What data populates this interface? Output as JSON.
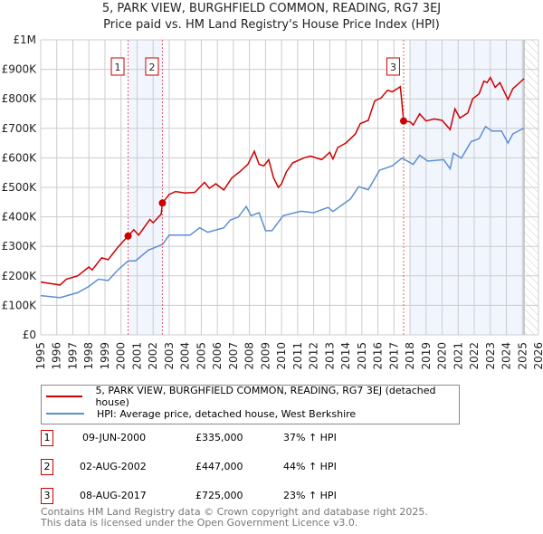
{
  "header": {
    "title": "5, PARK VIEW, BURGHFIELD COMMON, READING, RG7 3EJ",
    "subtitle": "Price paid vs. HM Land Registry's House Price Index (HPI)"
  },
  "chart_data": {
    "type": "line",
    "title": "5, PARK VIEW, BURGHFIELD COMMON, READING, RG7 3EJ",
    "subtitle": "Price paid vs. HM Land Registry's House Price Index (HPI)",
    "xlim": [
      1995,
      2026
    ],
    "ylim": [
      0,
      1000000
    ],
    "yticks": [
      {
        "v": 0,
        "label": "£0"
      },
      {
        "v": 100000,
        "label": "£100K"
      },
      {
        "v": 200000,
        "label": "£200K"
      },
      {
        "v": 300000,
        "label": "£300K"
      },
      {
        "v": 400000,
        "label": "£400K"
      },
      {
        "v": 500000,
        "label": "£500K"
      },
      {
        "v": 600000,
        "label": "£600K"
      },
      {
        "v": 700000,
        "label": "£700K"
      },
      {
        "v": 800000,
        "label": "£800K"
      },
      {
        "v": 900000,
        "label": "£900K"
      },
      {
        "v": 1000000,
        "label": "£1M"
      }
    ],
    "xticks": [
      "1995",
      "1996",
      "1997",
      "1998",
      "1999",
      "2000",
      "2001",
      "2002",
      "2003",
      "2004",
      "2005",
      "2006",
      "2007",
      "2008",
      "2009",
      "2010",
      "2011",
      "2012",
      "2013",
      "2014",
      "2015",
      "2016",
      "2017",
      "2018",
      "2019",
      "2020",
      "2021",
      "2022",
      "2023",
      "2024",
      "2025",
      "2026"
    ],
    "grid": true,
    "series": [
      {
        "name": "5, PARK VIEW, BURGHFIELD COMMON, READING, RG7 3EJ (detached house)",
        "color": "#cc0000",
        "points": [
          [
            1995,
            179000
          ],
          [
            1996.2,
            169000
          ],
          [
            1996.6,
            189000
          ],
          [
            1997.3,
            200000
          ],
          [
            1998,
            230000
          ],
          [
            1998.2,
            220000
          ],
          [
            1998.8,
            261000
          ],
          [
            1999.2,
            255000
          ],
          [
            1999.8,
            297000
          ],
          [
            2000.44,
            335000
          ],
          [
            2000.8,
            356000
          ],
          [
            2001.1,
            338000
          ],
          [
            2001.8,
            391000
          ],
          [
            2002,
            380000
          ],
          [
            2002.5,
            409000
          ],
          [
            2002.58,
            447000
          ],
          [
            2003,
            476000
          ],
          [
            2003.4,
            486000
          ],
          [
            2004,
            481000
          ],
          [
            2004.6,
            483000
          ],
          [
            2005.2,
            517000
          ],
          [
            2005.5,
            497000
          ],
          [
            2005.9,
            512000
          ],
          [
            2006.4,
            491000
          ],
          [
            2006.9,
            532000
          ],
          [
            2007.4,
            553000
          ],
          [
            2007.9,
            578000
          ],
          [
            2008.3,
            622000
          ],
          [
            2008.6,
            578000
          ],
          [
            2008.9,
            573000
          ],
          [
            2009.2,
            594000
          ],
          [
            2009.5,
            532000
          ],
          [
            2009.8,
            500000
          ],
          [
            2010,
            512000
          ],
          [
            2010.3,
            553000
          ],
          [
            2010.7,
            583000
          ],
          [
            2011.4,
            600000
          ],
          [
            2011.8,
            606000
          ],
          [
            2012.5,
            594000
          ],
          [
            2013,
            619000
          ],
          [
            2013.2,
            596000
          ],
          [
            2013.5,
            635000
          ],
          [
            2014,
            650000
          ],
          [
            2014.6,
            681000
          ],
          [
            2014.9,
            716000
          ],
          [
            2015.4,
            727000
          ],
          [
            2015.8,
            793000
          ],
          [
            2016.2,
            803000
          ],
          [
            2016.6,
            829000
          ],
          [
            2016.9,
            824000
          ],
          [
            2017.4,
            841000
          ],
          [
            2017.6,
            725000
          ],
          [
            2018,
            722000
          ],
          [
            2018.2,
            711000
          ],
          [
            2018.6,
            749000
          ],
          [
            2019,
            725000
          ],
          [
            2019.5,
            732000
          ],
          [
            2020,
            727000
          ],
          [
            2020.5,
            696000
          ],
          [
            2020.8,
            766000
          ],
          [
            2021.1,
            735000
          ],
          [
            2021.6,
            752000
          ],
          [
            2021.9,
            800000
          ],
          [
            2022.3,
            817000
          ],
          [
            2022.6,
            860000
          ],
          [
            2022.8,
            855000
          ],
          [
            2023,
            872000
          ],
          [
            2023.3,
            839000
          ],
          [
            2023.6,
            855000
          ],
          [
            2024.1,
            798000
          ],
          [
            2024.4,
            834000
          ],
          [
            2025.1,
            868000
          ]
        ]
      },
      {
        "name": "HPI: Average price, detached house, West Berkshire",
        "color": "#5b8fd4",
        "points": [
          [
            1995,
            133000
          ],
          [
            1996.2,
            126000
          ],
          [
            1997.3,
            143000
          ],
          [
            1998,
            164000
          ],
          [
            1998.6,
            189000
          ],
          [
            1999.2,
            184000
          ],
          [
            1999.8,
            220000
          ],
          [
            2000.45,
            251000
          ],
          [
            2000.9,
            251000
          ],
          [
            2001.7,
            287000
          ],
          [
            2002.6,
            307000
          ],
          [
            2003,
            338000
          ],
          [
            2004.3,
            338000
          ],
          [
            2004.9,
            363000
          ],
          [
            2005.4,
            348000
          ],
          [
            2006.4,
            363000
          ],
          [
            2006.8,
            389000
          ],
          [
            2007.3,
            399000
          ],
          [
            2007.8,
            435000
          ],
          [
            2008.1,
            404000
          ],
          [
            2008.6,
            414000
          ],
          [
            2009,
            353000
          ],
          [
            2009.4,
            353000
          ],
          [
            2010.1,
            404000
          ],
          [
            2011.2,
            419000
          ],
          [
            2012,
            414000
          ],
          [
            2012.9,
            432000
          ],
          [
            2013.2,
            418000
          ],
          [
            2014.3,
            461000
          ],
          [
            2014.8,
            502000
          ],
          [
            2015.4,
            492000
          ],
          [
            2016.1,
            558000
          ],
          [
            2016.9,
            573000
          ],
          [
            2017.5,
            599000
          ],
          [
            2018.2,
            578000
          ],
          [
            2018.6,
            609000
          ],
          [
            2019.1,
            589000
          ],
          [
            2020.1,
            594000
          ],
          [
            2020.5,
            563000
          ],
          [
            2020.7,
            616000
          ],
          [
            2021.2,
            599000
          ],
          [
            2021.8,
            655000
          ],
          [
            2022.3,
            665000
          ],
          [
            2022.7,
            706000
          ],
          [
            2023.1,
            691000
          ],
          [
            2023.7,
            691000
          ],
          [
            2024.1,
            650000
          ],
          [
            2024.4,
            681000
          ],
          [
            2025.1,
            701000
          ]
        ]
      }
    ],
    "sales": [
      {
        "id": "1",
        "year": 2000.44,
        "value": 335000
      },
      {
        "id": "2",
        "year": 2002.58,
        "value": 447000
      },
      {
        "id": "3",
        "year": 2017.6,
        "value": 725000
      }
    ],
    "shaded": [
      [
        2000.44,
        2002.58
      ],
      [
        2018.0,
        2025.1
      ]
    ],
    "hatched_from": 2025.1,
    "legend_placement": "below"
  },
  "legend": {
    "items": [
      {
        "label": "5, PARK VIEW, BURGHFIELD COMMON, READING, RG7 3EJ (detached house)",
        "color": "#cc0000"
      },
      {
        "label": "HPI: Average price, detached house, West Berkshire",
        "color": "#5b8fd4"
      }
    ]
  },
  "sales_table": [
    {
      "num": "1",
      "date": "09-JUN-2000",
      "price": "£335,000",
      "hpi": "37% ↑ HPI"
    },
    {
      "num": "2",
      "date": "02-AUG-2002",
      "price": "£447,000",
      "hpi": "44% ↑ HPI"
    },
    {
      "num": "3",
      "date": "08-AUG-2017",
      "price": "£725,000",
      "hpi": "23% ↑ HPI"
    }
  ],
  "footer": {
    "line1": "Contains HM Land Registry data © Crown copyright and database right 2025.",
    "line2": "This data is licensed under the Open Government Licence v3.0."
  }
}
